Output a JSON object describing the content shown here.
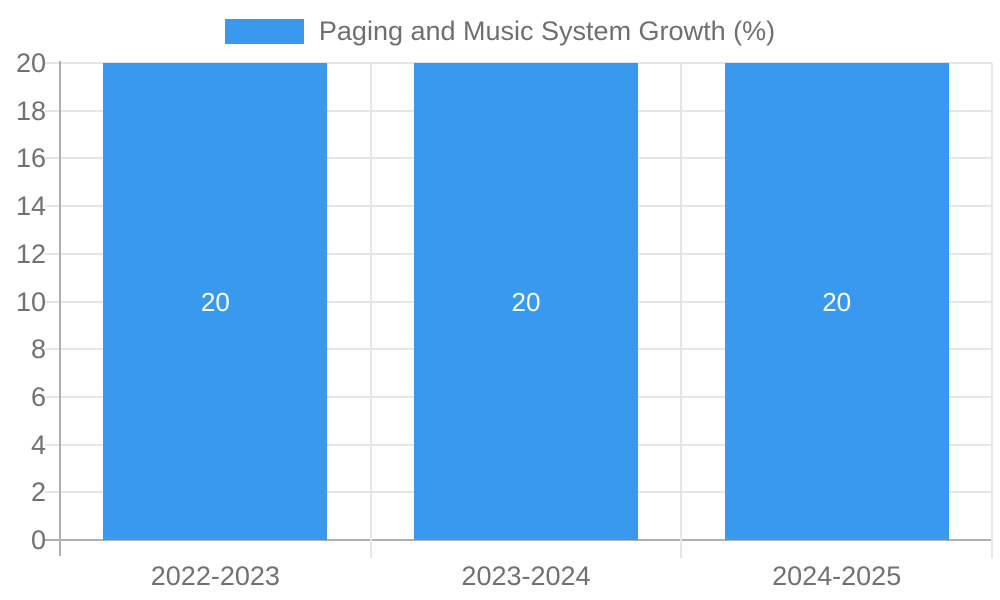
{
  "legend": {
    "label": "Paging and Music System Growth (%)"
  },
  "chart_data": {
    "type": "bar",
    "title": "Paging and Music System Growth (%)",
    "categories": [
      "2022-2023",
      "2023-2024",
      "2024-2025"
    ],
    "series": [
      {
        "name": "Paging and Music System Growth (%)",
        "values": [
          20,
          20,
          20
        ]
      }
    ],
    "value_labels": [
      "20",
      "20",
      "20"
    ],
    "ylabel": "",
    "xlabel": "",
    "ylim": [
      0,
      20
    ],
    "ytick_step": 2,
    "ytick_labels": [
      "0",
      "2",
      "4",
      "6",
      "8",
      "10",
      "12",
      "14",
      "16",
      "18",
      "20"
    ],
    "grid": true,
    "legend_position": "top",
    "colors": {
      "bar": "#3899ee",
      "grid": "#e6e6e6",
      "axis": "#b0b0b0",
      "tick_text": "#717171",
      "value_label_text": "#ffffff",
      "background": "#ffffff"
    }
  }
}
